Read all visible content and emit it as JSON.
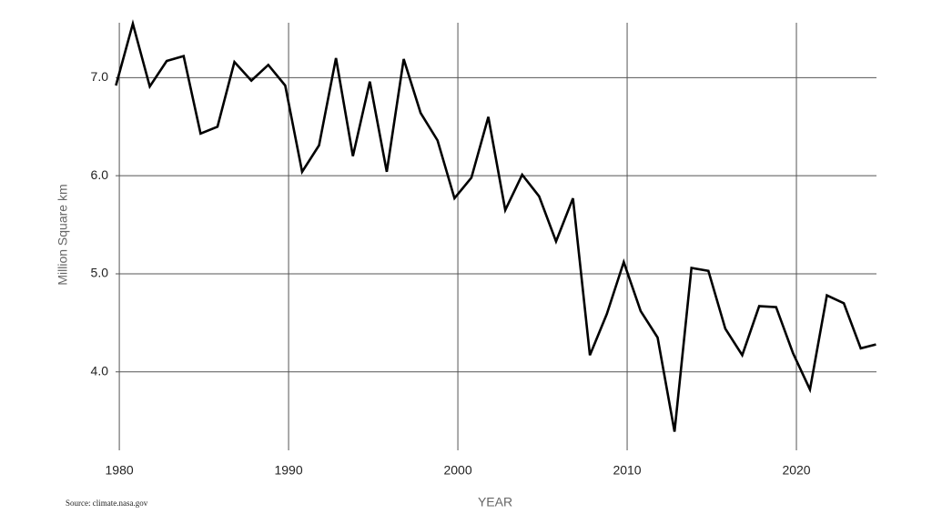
{
  "chart_data": {
    "type": "line",
    "y_label": "Million Square km",
    "x_label": "YEAR",
    "source": "Source: climate.nasa.gov",
    "color": "#000000",
    "grid": true,
    "x": [
      1979.8,
      1980.8,
      1981.8,
      1982.8,
      1983.8,
      1984.8,
      1985.8,
      1986.8,
      1987.8,
      1988.8,
      1989.8,
      1990.8,
      1991.8,
      1992.8,
      1993.8,
      1994.8,
      1995.8,
      1996.8,
      1997.8,
      1998.8,
      1999.8,
      2000.8,
      2001.8,
      2002.8,
      2003.8,
      2004.8,
      2005.8,
      2006.8,
      2007.8,
      2008.8,
      2009.8,
      2010.8,
      2011.8,
      2012.8,
      2013.8,
      2014.8,
      2015.8,
      2016.8,
      2017.8,
      2018.8,
      2019.8,
      2020.8,
      2021.8,
      2022.8,
      2023.8,
      2024.7
    ],
    "values": [
      6.92,
      7.55,
      6.91,
      7.17,
      7.22,
      6.43,
      6.5,
      7.16,
      6.97,
      7.13,
      6.92,
      6.04,
      6.31,
      7.2,
      6.2,
      6.96,
      6.04,
      7.19,
      6.64,
      6.36,
      5.77,
      5.98,
      6.6,
      5.65,
      6.01,
      5.79,
      5.33,
      5.77,
      4.17,
      4.59,
      5.12,
      4.62,
      4.35,
      3.39,
      5.06,
      5.03,
      4.44,
      4.17,
      4.67,
      4.66,
      4.19,
      3.82,
      4.78,
      4.7,
      4.24,
      4.28
    ],
    "xlim": [
      1979.78,
      2024.73
    ],
    "xticks": [
      1980,
      1990,
      2000,
      2010,
      2020
    ],
    "ylim": [
      3.2,
      7.56
    ],
    "yticks": [
      {
        "value": 4,
        "label": "4.0"
      },
      {
        "value": 5,
        "label": "5.0"
      },
      {
        "value": 6,
        "label": "6.0"
      },
      {
        "value": 7,
        "label": "7.0"
      }
    ]
  }
}
